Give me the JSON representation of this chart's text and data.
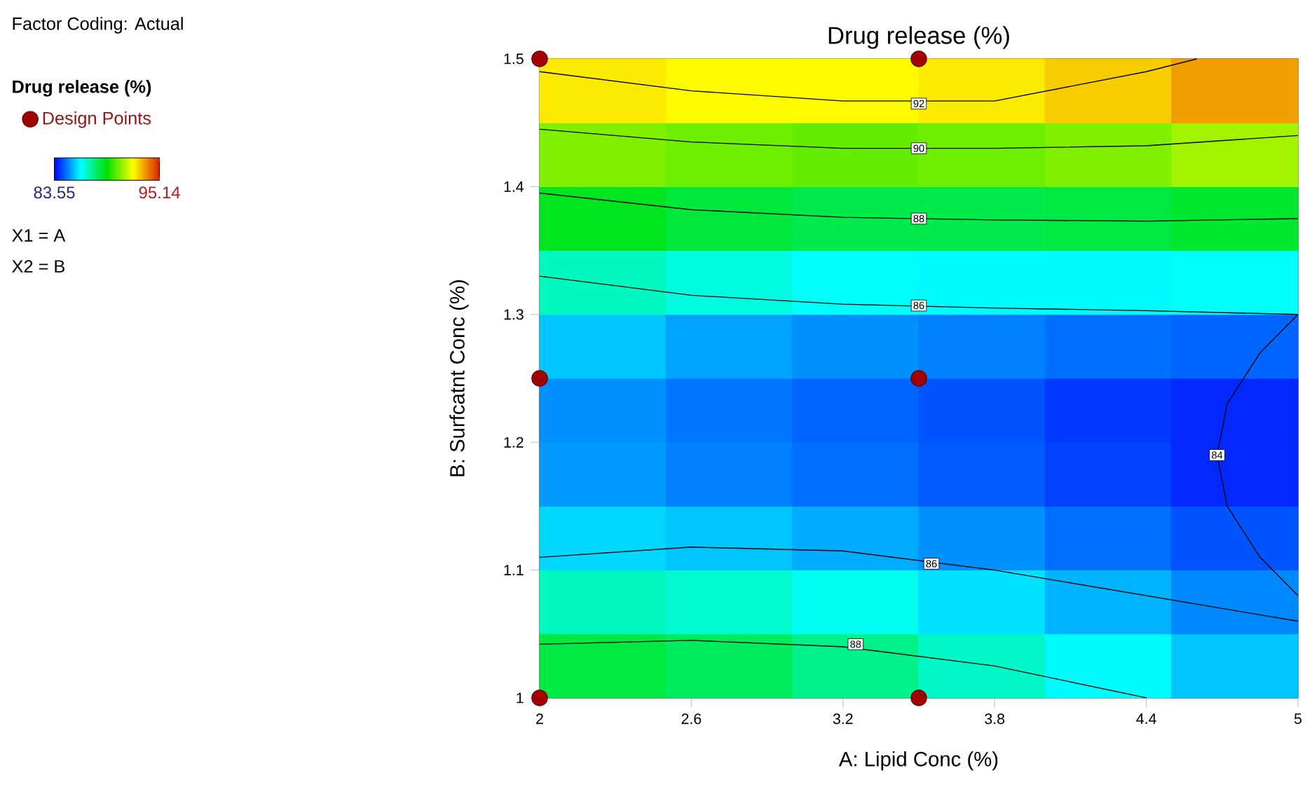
{
  "chart_data": {
    "type": "heatmap",
    "title": "Drug release  (%)",
    "xlabel": "A: Lipid Conc (%)",
    "ylabel": "B: Surfcatnt Conc (%)",
    "legend_title": "Drug release  (%)",
    "x": [
      2.25,
      2.75,
      3.25,
      3.75,
      4.25,
      4.75
    ],
    "y": [
      1.475,
      1.425,
      1.375,
      1.325,
      1.275,
      1.225,
      1.175,
      1.125,
      1.075,
      1.025
    ],
    "cells": [
      [
        92.5,
        92.3,
        92.3,
        92.5,
        92.9,
        93.5
      ],
      [
        90.8,
        90.6,
        90.5,
        90.6,
        90.8,
        91.2
      ],
      [
        89.0,
        88.7,
        88.5,
        88.5,
        88.6,
        88.8
      ],
      [
        87.2,
        86.8,
        86.5,
        86.4,
        86.4,
        86.5
      ],
      [
        85.8,
        85.4,
        85.2,
        85.0,
        84.8,
        84.7
      ],
      [
        85.2,
        84.9,
        84.7,
        84.5,
        84.2,
        84.0
      ],
      [
        85.3,
        85.0,
        84.8,
        84.6,
        84.3,
        84.0
      ],
      [
        86.0,
        85.8,
        85.5,
        85.2,
        84.8,
        84.5
      ],
      [
        87.2,
        87.0,
        86.6,
        86.1,
        85.6,
        85.1
      ],
      [
        88.6,
        88.3,
        87.8,
        87.1,
        86.4,
        85.8
      ]
    ],
    "clim": [
      83.55,
      95.14
    ],
    "cticks": [
      83.55,
      95.14
    ],
    "xlim": [
      2,
      5
    ],
    "ylim": [
      1,
      1.5
    ],
    "xticks": [
      2,
      2.6,
      3.2,
      3.8,
      4.4,
      5
    ],
    "yticks": [
      1,
      1.1,
      1.2,
      1.3,
      1.4,
      1.5
    ],
    "legend": "left",
    "series": [
      {
        "type": "scatter",
        "name": "Design Points",
        "color": "#a00000",
        "marker": "circle",
        "x": [
          2,
          3.5,
          2,
          3.5,
          2,
          3.5
        ],
        "values": [
          1.5,
          1.5,
          1.25,
          1.25,
          1,
          1
        ]
      },
      {
        "type": "line",
        "color": "#000000",
        "x": [
          2,
          2.6,
          3.2,
          3.8,
          4.4,
          4.6
        ],
        "values": [
          1.49,
          1.475,
          1.467,
          1.467,
          1.49,
          1.5
        ]
      },
      {
        "type": "line",
        "color": "#000000",
        "x": [
          2,
          2.6,
          3.2,
          3.8,
          4.4,
          5
        ],
        "values": [
          1.445,
          1.435,
          1.43,
          1.43,
          1.432,
          1.44
        ]
      },
      {
        "type": "line",
        "color": "#000000",
        "x": [
          2,
          2.6,
          3.2,
          3.8,
          4.4,
          5
        ],
        "values": [
          1.395,
          1.382,
          1.376,
          1.374,
          1.373,
          1.375
        ]
      },
      {
        "type": "line",
        "color": "#000000",
        "x": [
          2,
          2.6,
          3.2,
          3.8,
          4.4,
          5
        ],
        "values": [
          1.33,
          1.315,
          1.308,
          1.305,
          1.303,
          1.3
        ]
      },
      {
        "type": "line",
        "color": "#000000",
        "x": [
          5,
          4.85,
          4.72,
          4.68,
          4.72,
          4.85,
          5
        ],
        "values": [
          1.3,
          1.27,
          1.23,
          1.19,
          1.15,
          1.11,
          1.08
        ]
      },
      {
        "type": "line",
        "color": "#000000",
        "x": [
          2,
          2.6,
          3.2,
          3.8,
          4.4,
          5
        ],
        "values": [
          1.11,
          1.118,
          1.115,
          1.1,
          1.08,
          1.06
        ]
      },
      {
        "type": "line",
        "color": "#000000",
        "x": [
          2,
          2.6,
          3.2,
          3.8,
          4.4
        ],
        "values": [
          1.042,
          1.045,
          1.04,
          1.025,
          1.0
        ]
      }
    ],
    "annotations": [
      "Factor Coding: Actual",
      "X1 = A",
      "X2 = B",
      {
        "text": "92",
        "x": 3.5,
        "y": 1.465
      },
      {
        "text": "90",
        "x": 3.5,
        "y": 1.43
      },
      {
        "text": "88",
        "x": 3.5,
        "y": 1.375
      },
      {
        "text": "86",
        "x": 3.5,
        "y": 1.307
      },
      {
        "text": "84",
        "x": 4.68,
        "y": 1.19
      },
      {
        "text": "86",
        "x": 3.55,
        "y": 1.105
      },
      {
        "text": "88",
        "x": 3.25,
        "y": 1.042
      }
    ]
  }
}
